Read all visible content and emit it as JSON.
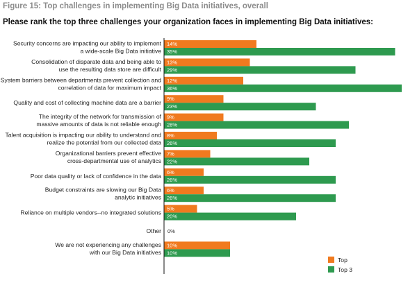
{
  "figure_caption": "Figure 15: Top challenges in implementing Big Data initiatives, overall",
  "question": "Please rank the top three challenges your organization faces in implementing Big Data initiatives:",
  "colors": {
    "top": "#f07a1f",
    "top3": "#2e9a4f",
    "axis": "#111111"
  },
  "chart_data": {
    "type": "bar",
    "orientation": "horizontal",
    "categories": [
      [
        "Security concerns are impacting our ability to implement",
        "a wide-scale Big Data initiative"
      ],
      [
        "Consolidation of disparate data and being able to",
        "use the resulting data store are difficult"
      ],
      [
        "System barriers between departments prevent collection and",
        "correlation of data for maximum impact"
      ],
      [
        "Quality and cost of collecting machine data are a barrier"
      ],
      [
        "The integrity of the network for transmission of",
        "massive amounts of data is not reliable enough"
      ],
      [
        "Talent acquisition is impacting our ability to understand and",
        "realize the potential from our collected data"
      ],
      [
        "Organizational barriers prevent effective",
        "cross-departmental use of analytics"
      ],
      [
        "Poor data quality or lack of confidence in the data"
      ],
      [
        "Budget constraints are slowing our Big Data",
        "analytic initiatives"
      ],
      [
        "Reliance on multiple vendors--no integrated solutions"
      ],
      [
        "Other"
      ],
      [
        "We are not experiencing any challenges",
        "with our Big Data initiatives"
      ]
    ],
    "series": [
      {
        "name": "Top",
        "values": [
          14,
          13,
          12,
          9,
          9,
          8,
          7,
          6,
          6,
          5,
          0,
          10
        ],
        "labels": [
          "14%",
          "13%",
          "12%",
          "9%",
          "9%",
          "8%",
          "7%",
          "6%",
          "6%",
          "5%",
          "",
          "10%"
        ]
      },
      {
        "name": "Top 3",
        "values": [
          35,
          29,
          36,
          23,
          28,
          26,
          22,
          26,
          26,
          20,
          0,
          10
        ],
        "labels": [
          "35%",
          "29%",
          "36%",
          "23%",
          "28%",
          "26%",
          "22%",
          "26%",
          "26%",
          "20%",
          "",
          "10%"
        ]
      }
    ],
    "other_label": "0%",
    "xlim": [
      0,
      36
    ],
    "legend_position": "bottom-right",
    "grid": false
  }
}
